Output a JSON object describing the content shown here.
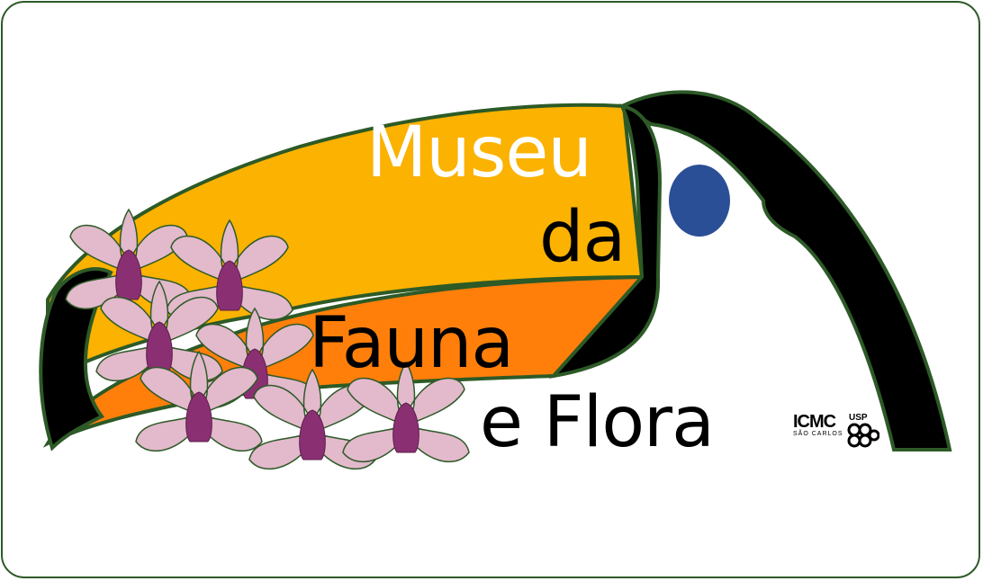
{
  "logo": {
    "title_line1": "Museu",
    "title_line2": "da",
    "title_line3": "Fauna",
    "title_line4": "e Flora",
    "institution": "ICMC",
    "institution_sub": "SÃO CARLOS",
    "university": "USP"
  },
  "colors": {
    "outline": "#2d5a27",
    "beak_yellow": "#fbb200",
    "beak_orange": "#ff7f0a",
    "black": "#000000",
    "eye": "#2b4f96",
    "petal": "#e3b9cc",
    "orchid_center": "#8b2f73"
  }
}
